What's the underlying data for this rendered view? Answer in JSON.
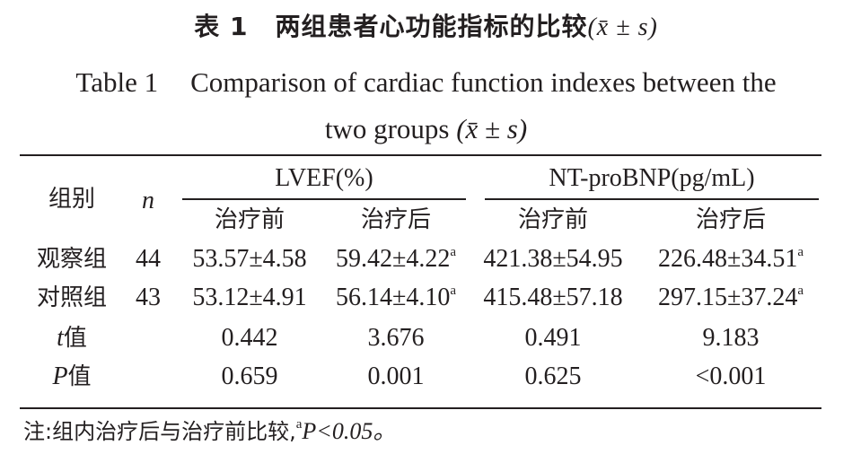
{
  "title": {
    "cn_table_no": "表 1",
    "cn_text": "两组患者心功能指标的比较",
    "stat_symbol": "(x̄ ± s)",
    "en_table_no": "Table 1",
    "en_text_line1": "Comparison of cardiac function indexes between the",
    "en_text_line2": "two groups"
  },
  "table": {
    "group_header": "组别",
    "n_header": "n",
    "lvef_header": "LVEF(%)",
    "ntprobnp_header": "NT-proBNP(pg/mL)",
    "before_label": "治疗前",
    "after_label": "治疗后",
    "rows": [
      {
        "group": "观察组",
        "n": "44",
        "lvef_before": "53.57±4.58",
        "lvef_after": "59.42±4.22",
        "lvef_after_sup": "a",
        "nt_before": "421.38±54.95",
        "nt_after": "226.48±34.51",
        "nt_after_sup": "a"
      },
      {
        "group": "对照组",
        "n": "43",
        "lvef_before": "53.12±4.91",
        "lvef_after": "56.14±4.10",
        "lvef_after_sup": "a",
        "nt_before": "415.48±57.18",
        "nt_after": "297.15±37.24",
        "nt_after_sup": "a"
      }
    ],
    "stat_rows": [
      {
        "symbol": "t",
        "label": "值",
        "lvef_before": "0.442",
        "lvef_after": "3.676",
        "nt_before": "0.491",
        "nt_after": "9.183"
      },
      {
        "symbol": "P",
        "label": "值",
        "lvef_before": "0.659",
        "lvef_after": "0.001",
        "nt_before": "0.625",
        "nt_after": "<0.001"
      }
    ]
  },
  "note": {
    "prefix": "注:组内治疗后与治疗前比较,",
    "sup": "a",
    "text": "P<0.05。"
  }
}
